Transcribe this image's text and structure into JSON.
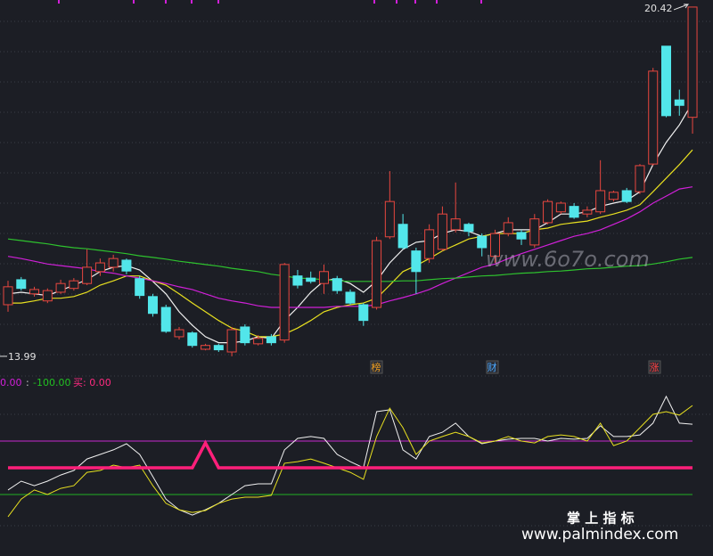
{
  "chart_data": [
    {
      "type": "candlestick",
      "ylim": [
        13.66,
        20.55
      ],
      "up_color": "#e8473f",
      "down_color": "#52e6ea",
      "open": [
        14.94,
        15.4,
        15.14,
        15.01,
        15.17,
        15.24,
        15.33,
        15.55,
        15.63,
        15.76,
        15.42,
        15.09,
        14.89,
        14.35,
        14.42,
        14.12,
        14.19,
        14.07,
        14.53,
        14.22,
        14.35,
        14.29,
        15.47,
        15.43,
        15.33,
        15.42,
        15.17,
        14.94,
        14.89,
        16.19,
        16.42,
        15.93,
        15.79,
        15.96,
        16.32,
        16.42,
        16.2,
        15.83,
        16.25,
        16.27,
        16.04,
        16.45,
        16.65,
        16.75,
        16.61,
        16.65,
        16.88,
        17.04,
        17.02,
        17.53,
        19.7,
        18.71,
        18.39
      ],
      "high": [
        15.38,
        15.45,
        15.27,
        15.24,
        15.4,
        15.43,
        15.96,
        15.79,
        15.86,
        15.79,
        15.47,
        15.14,
        14.94,
        14.53,
        14.45,
        14.22,
        14.22,
        14.53,
        14.58,
        14.38,
        14.4,
        15.71,
        15.58,
        15.55,
        15.68,
        15.47,
        15.22,
        14.97,
        16.19,
        17.4,
        16.61,
        15.99,
        16.42,
        16.75,
        17.19,
        16.45,
        16.25,
        16.32,
        16.55,
        16.32,
        16.61,
        16.88,
        16.84,
        16.81,
        16.75,
        17.6,
        17.04,
        17.09,
        17.53,
        19.3,
        19.7,
        18.9,
        20.42
      ],
      "low": [
        14.81,
        15.2,
        15.09,
        14.97,
        15.14,
        15.2,
        15.3,
        15.47,
        15.55,
        15.5,
        15.05,
        14.72,
        14.42,
        14.3,
        14.15,
        14.1,
        14.07,
        13.99,
        14.19,
        14.19,
        14.19,
        14.24,
        15.24,
        15.33,
        15.14,
        15.14,
        14.94,
        14.55,
        14.85,
        16.15,
        15.96,
        15.14,
        15.71,
        15.93,
        16.27,
        16.2,
        15.83,
        15.71,
        16.2,
        16.04,
        15.99,
        16.42,
        16.61,
        16.52,
        16.55,
        16.61,
        16.84,
        16.81,
        16.98,
        17.5,
        18.39,
        18.42,
        18.09
      ],
      "close": [
        15.27,
        15.24,
        15.22,
        15.2,
        15.33,
        15.38,
        15.63,
        15.71,
        15.79,
        15.56,
        15.11,
        14.78,
        14.45,
        14.48,
        14.19,
        14.19,
        14.11,
        14.48,
        14.24,
        14.32,
        14.24,
        15.68,
        15.3,
        15.37,
        15.55,
        15.2,
        14.97,
        14.65,
        16.12,
        16.84,
        15.99,
        15.55,
        16.32,
        16.61,
        16.52,
        16.29,
        15.99,
        16.25,
        16.45,
        16.15,
        16.52,
        16.84,
        16.81,
        16.55,
        16.68,
        17.04,
        17.01,
        16.84,
        17.5,
        19.24,
        18.42,
        18.61,
        20.42
      ],
      "lines": [
        {
          "color": "#f2f2f2",
          "values": [
            15.14,
            15.17,
            15.14,
            15.11,
            15.2,
            15.3,
            15.4,
            15.55,
            15.63,
            15.66,
            15.58,
            15.37,
            15.14,
            14.81,
            14.56,
            14.35,
            14.24,
            14.24,
            14.27,
            14.35,
            14.32,
            14.65,
            14.89,
            15.17,
            15.38,
            15.42,
            15.33,
            15.17,
            15.38,
            15.71,
            15.96,
            16.09,
            16.12,
            16.25,
            16.32,
            16.29,
            16.2,
            16.25,
            16.32,
            16.32,
            16.32,
            16.45,
            16.61,
            16.61,
            16.65,
            16.75,
            16.81,
            16.86,
            17.02,
            17.52,
            17.93,
            18.25,
            18.66
          ]
        },
        {
          "color": "#e8e020",
          "values": [
            14.97,
            14.97,
            15.01,
            15.06,
            15.06,
            15.09,
            15.17,
            15.3,
            15.38,
            15.47,
            15.47,
            15.38,
            15.3,
            15.14,
            14.97,
            14.81,
            14.65,
            14.51,
            14.45,
            14.35,
            14.35,
            14.4,
            14.51,
            14.65,
            14.81,
            14.89,
            14.94,
            14.97,
            15.06,
            15.3,
            15.55,
            15.66,
            15.79,
            15.93,
            16.04,
            16.15,
            16.2,
            16.25,
            16.25,
            16.25,
            16.32,
            16.35,
            16.42,
            16.45,
            16.48,
            16.55,
            16.61,
            16.68,
            16.78,
            17.02,
            17.27,
            17.52,
            17.79
          ]
        },
        {
          "color": "#d020d8",
          "values": [
            15.83,
            15.79,
            15.74,
            15.69,
            15.66,
            15.63,
            15.6,
            15.55,
            15.52,
            15.47,
            15.43,
            15.38,
            15.33,
            15.27,
            15.22,
            15.14,
            15.06,
            15.01,
            14.97,
            14.92,
            14.89,
            14.89,
            14.89,
            14.89,
            14.89,
            14.91,
            14.91,
            14.91,
            14.94,
            15.01,
            15.07,
            15.14,
            15.22,
            15.33,
            15.43,
            15.53,
            15.63,
            15.69,
            15.79,
            15.88,
            15.96,
            16.04,
            16.12,
            16.2,
            16.25,
            16.32,
            16.42,
            16.52,
            16.65,
            16.81,
            16.94,
            17.07,
            17.11
          ]
        },
        {
          "color": "#2ec22e",
          "values": [
            16.15,
            16.12,
            16.09,
            16.06,
            16.02,
            15.99,
            15.97,
            15.94,
            15.91,
            15.88,
            15.84,
            15.81,
            15.78,
            15.74,
            15.71,
            15.68,
            15.65,
            15.61,
            15.58,
            15.55,
            15.5,
            15.47,
            15.43,
            15.42,
            15.4,
            15.38,
            15.37,
            15.37,
            15.37,
            15.37,
            15.38,
            15.38,
            15.4,
            15.42,
            15.43,
            15.45,
            15.47,
            15.48,
            15.5,
            15.52,
            15.53,
            15.55,
            15.56,
            15.58,
            15.6,
            15.61,
            15.63,
            15.65,
            15.66,
            15.69,
            15.73,
            15.78,
            15.81
          ]
        }
      ],
      "max_label": 20.42,
      "min_label": 13.99,
      "signals": [
        "榜",
        "财",
        "涨"
      ]
    },
    {
      "type": "line",
      "ylim": [
        -320,
        320
      ],
      "legend_texts": [
        "0.00",
        ":",
        "-100.00",
        "买: 0.00"
      ],
      "reference_lines": [
        {
          "value": 100,
          "color": "#c828d0"
        },
        {
          "value": -100,
          "color": "#22b022"
        }
      ],
      "series": [
        {
          "color": "#f0f0f0",
          "width": 1,
          "values": [
            -83,
            -50,
            -67,
            -50,
            -27,
            -10,
            33,
            50,
            67,
            90,
            50,
            -33,
            -117,
            -157,
            -177,
            -157,
            -133,
            -100,
            -67,
            -60,
            -60,
            67,
            110,
            117,
            110,
            50,
            23,
            0,
            210,
            217,
            67,
            33,
            117,
            133,
            167,
            117,
            90,
            100,
            107,
            110,
            110,
            100,
            110,
            107,
            110,
            157,
            117,
            117,
            123,
            167,
            267,
            167,
            163
          ]
        },
        {
          "color": "#e8e020",
          "width": 1,
          "values": [
            -183,
            -117,
            -83,
            -100,
            -77,
            -67,
            -17,
            -10,
            10,
            0,
            10,
            -67,
            -133,
            -157,
            -167,
            -160,
            -133,
            -117,
            -110,
            -110,
            -103,
            17,
            23,
            33,
            17,
            0,
            -17,
            -43,
            117,
            223,
            150,
            50,
            100,
            117,
            133,
            117,
            93,
            100,
            117,
            100,
            93,
            117,
            123,
            117,
            100,
            167,
            83,
            100,
            150,
            200,
            210,
            197,
            233
          ]
        },
        {
          "color": "#ff1f7a",
          "width": 3.5,
          "values": [
            0,
            0,
            0,
            0,
            0,
            0,
            0,
            0,
            0,
            0,
            0,
            0,
            0,
            0,
            0,
            93,
            0,
            0,
            0,
            0,
            0,
            0,
            0,
            0,
            0,
            0,
            0,
            0,
            0,
            0,
            0,
            0,
            0,
            0,
            0,
            0,
            0,
            0,
            0,
            0,
            0,
            0,
            0,
            0,
            0,
            0,
            0,
            0,
            0,
            0,
            0,
            0,
            0
          ]
        }
      ]
    }
  ],
  "watermark": {
    "site": "www.6o7o.com",
    "brand": "掌 上 指 标",
    "url": "www.palmindex.com"
  }
}
